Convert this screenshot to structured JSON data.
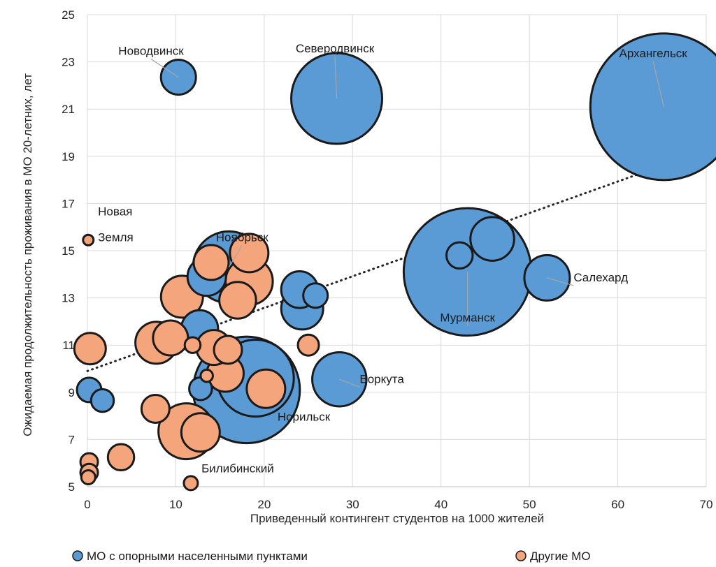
{
  "chart_data": {
    "type": "scatter",
    "subtype": "bubble",
    "title": "",
    "xlabel": "Приведенный контингент студентов на 1000 жителей",
    "ylabel": "Ожидаемая продолжительность проживания в МО 20-летних, лет",
    "xlim": [
      0,
      70
    ],
    "ylim": [
      5,
      25
    ],
    "x_ticks": [
      "0",
      "10",
      "20",
      "30",
      "40",
      "50",
      "60",
      "70"
    ],
    "y_ticks": [
      "5",
      "7",
      "9",
      "11",
      "13",
      "15",
      "17",
      "19",
      "21",
      "23",
      "25"
    ],
    "grid": true,
    "legend_position": "bottom",
    "trendline": {
      "style": "dotted",
      "x": [
        0,
        65
      ],
      "y": [
        9.9,
        18.6
      ]
    },
    "colors": {
      "blue_fill": "#5b9bd5",
      "orange_fill": "#f4a57c",
      "outline": "#1a1a1a",
      "grid": "#d9d9d9",
      "trend": "#262626"
    },
    "series": [
      {
        "name": "МО с опорными населенными пунктами",
        "color": "#5b9bd5",
        "points": [
          {
            "x": 65.2,
            "y": 21.1,
            "size": 4.2
          },
          {
            "x": 28.2,
            "y": 21.45,
            "size": 2.6
          },
          {
            "x": 43.0,
            "y": 14.1,
            "size": 3.65
          },
          {
            "x": 18.0,
            "y": 9.1,
            "size": 3.05
          },
          {
            "x": 19.0,
            "y": 9.6,
            "size": 2.2
          },
          {
            "x": 28.5,
            "y": 9.55,
            "size": 1.55
          },
          {
            "x": 52.0,
            "y": 13.85,
            "size": 1.3
          },
          {
            "x": 45.8,
            "y": 15.5,
            "size": 1.25
          },
          {
            "x": 42.1,
            "y": 14.8,
            "size": 0.75
          },
          {
            "x": 16.0,
            "y": 14.3,
            "size": 2.05
          },
          {
            "x": 13.5,
            "y": 13.9,
            "size": 1.1
          },
          {
            "x": 10.3,
            "y": 22.35,
            "size": 1.0
          },
          {
            "x": 24.0,
            "y": 13.35,
            "size": 1.05
          },
          {
            "x": 24.3,
            "y": 12.55,
            "size": 1.2
          },
          {
            "x": 25.8,
            "y": 13.1,
            "size": 0.7
          },
          {
            "x": 12.7,
            "y": 11.7,
            "size": 1.05
          },
          {
            "x": 12.8,
            "y": 9.15,
            "size": 0.65
          },
          {
            "x": 1.7,
            "y": 8.65,
            "size": 0.65
          },
          {
            "x": 0.2,
            "y": 9.1,
            "size": 0.7
          }
        ]
      },
      {
        "name": "Другие МО",
        "color": "#f4a57c",
        "points": [
          {
            "x": 11.2,
            "y": 7.35,
            "size": 1.6
          },
          {
            "x": 12.8,
            "y": 7.3,
            "size": 1.1
          },
          {
            "x": 20.2,
            "y": 9.15,
            "size": 1.1
          },
          {
            "x": 15.6,
            "y": 9.8,
            "size": 1.05
          },
          {
            "x": 18.3,
            "y": 13.7,
            "size": 1.35
          },
          {
            "x": 18.3,
            "y": 14.9,
            "size": 1.1
          },
          {
            "x": 14.0,
            "y": 14.5,
            "size": 1.0
          },
          {
            "x": 17.0,
            "y": 12.9,
            "size": 1.05
          },
          {
            "x": 10.7,
            "y": 13.05,
            "size": 1.2
          },
          {
            "x": 7.8,
            "y": 11.1,
            "size": 1.2
          },
          {
            "x": 9.4,
            "y": 11.3,
            "size": 1.0
          },
          {
            "x": 14.3,
            "y": 10.9,
            "size": 1.0
          },
          {
            "x": 15.9,
            "y": 10.8,
            "size": 0.8
          },
          {
            "x": 0.3,
            "y": 10.85,
            "size": 0.9
          },
          {
            "x": 7.7,
            "y": 8.3,
            "size": 0.8
          },
          {
            "x": 3.8,
            "y": 6.25,
            "size": 0.75
          },
          {
            "x": 25.0,
            "y": 11.0,
            "size": 0.6
          },
          {
            "x": 11.9,
            "y": 11.0,
            "size": 0.45
          },
          {
            "x": 13.5,
            "y": 9.7,
            "size": 0.35
          },
          {
            "x": 0.2,
            "y": 6.05,
            "size": 0.5
          },
          {
            "x": 0.2,
            "y": 5.6,
            "size": 0.5
          },
          {
            "x": 0.1,
            "y": 5.4,
            "size": 0.4
          },
          {
            "x": 11.7,
            "y": 5.15,
            "size": 0.4
          },
          {
            "x": 0.1,
            "y": 15.45,
            "size": 0.3
          }
        ]
      }
    ],
    "annotations": [
      {
        "text": "Архангельск",
        "x": 64.0,
        "y": 23.2,
        "leader_to": [
          65.2,
          21.1
        ]
      },
      {
        "text": "Северодвинск",
        "x": 28.0,
        "y": 23.4,
        "leader_to": [
          28.2,
          21.45
        ]
      },
      {
        "text": "Новодвинск",
        "x": 7.2,
        "y": 23.3,
        "leader_to": [
          10.3,
          22.35
        ]
      },
      {
        "text": "Новая",
        "x": 1.2,
        "y": 16.5
      },
      {
        "text": "Земля",
        "x": 1.2,
        "y": 15.4
      },
      {
        "text": "Ноябрьск",
        "x": 17.5,
        "y": 15.4,
        "leader_to": [
          16.0,
          14.3
        ]
      },
      {
        "text": "Мурманск",
        "x": 43.0,
        "y": 12.0,
        "leader_to": [
          43.0,
          14.1
        ]
      },
      {
        "text": "Салехард",
        "x": 55.0,
        "y": 13.7,
        "leader_to": [
          52.0,
          13.85
        ]
      },
      {
        "text": "Воркута",
        "x": 30.8,
        "y": 9.4,
        "leader_to": [
          28.5,
          9.55
        ]
      },
      {
        "text": "Норильск",
        "x": 21.5,
        "y": 7.8
      },
      {
        "text": "Билибинский",
        "x": 12.9,
        "y": 5.6
      }
    ]
  }
}
